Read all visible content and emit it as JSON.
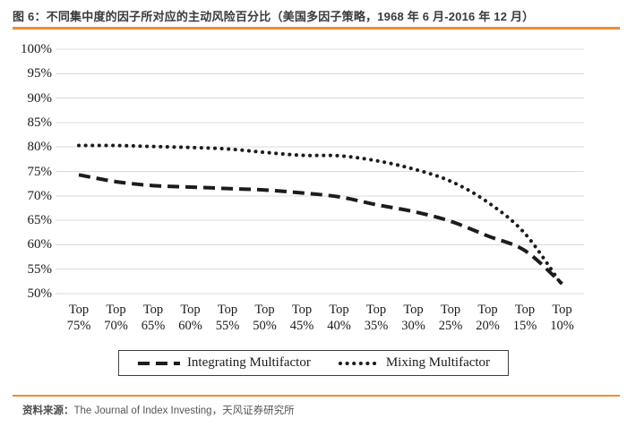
{
  "header": {
    "title": "图 6：不同集中度的因子所对应的主动风险百分比（美国多因子策略，1968 年 6 月-2016 年 12 月）"
  },
  "footer": {
    "source_label": "资料来源：",
    "source_text": "The Journal of Index Investing，天风证券研究所"
  },
  "colors": {
    "accent_orange": "#F08C2D",
    "line_color": "#1c1c1c",
    "gridline": "#d9d9d9",
    "title_text": "#3a3a3a",
    "source_text": "#555555"
  },
  "chart_data": {
    "type": "line",
    "title": "不同集中度的因子所对应的主动风险百分比（美国多因子策略，1968 年 6 月-2016 年 12 月）",
    "categories": [
      "Top 75%",
      "Top 70%",
      "Top 65%",
      "Top 60%",
      "Top 55%",
      "Top 50%",
      "Top 45%",
      "Top 40%",
      "Top 35%",
      "Top 30%",
      "Top 25%",
      "Top 20%",
      "Top 15%",
      "Top 10%"
    ],
    "series": [
      {
        "name": "Integrating Multifactor",
        "style": "dashed",
        "values": [
          74.3,
          72.9,
          72.1,
          71.8,
          71.5,
          71.2,
          70.6,
          69.8,
          68.2,
          66.8,
          64.8,
          61.8,
          58.8,
          52.0
        ]
      },
      {
        "name": "Mixing Multifactor",
        "style": "dotted",
        "values": [
          80.3,
          80.3,
          80.1,
          79.9,
          79.6,
          78.9,
          78.3,
          78.2,
          77.2,
          75.5,
          73.0,
          68.7,
          62.3,
          51.7
        ]
      }
    ],
    "ylim": [
      50,
      100
    ],
    "y_tick_values": [
      100,
      95,
      90,
      85,
      80,
      75,
      70,
      65,
      60,
      55,
      50
    ],
    "y_tick_labels": [
      "100%",
      "95%",
      "90%",
      "85%",
      "80%",
      "75%",
      "70%",
      "65%",
      "60%",
      "55%",
      "50%"
    ],
    "grid": "horizontal",
    "legend_position": "bottom-center"
  }
}
